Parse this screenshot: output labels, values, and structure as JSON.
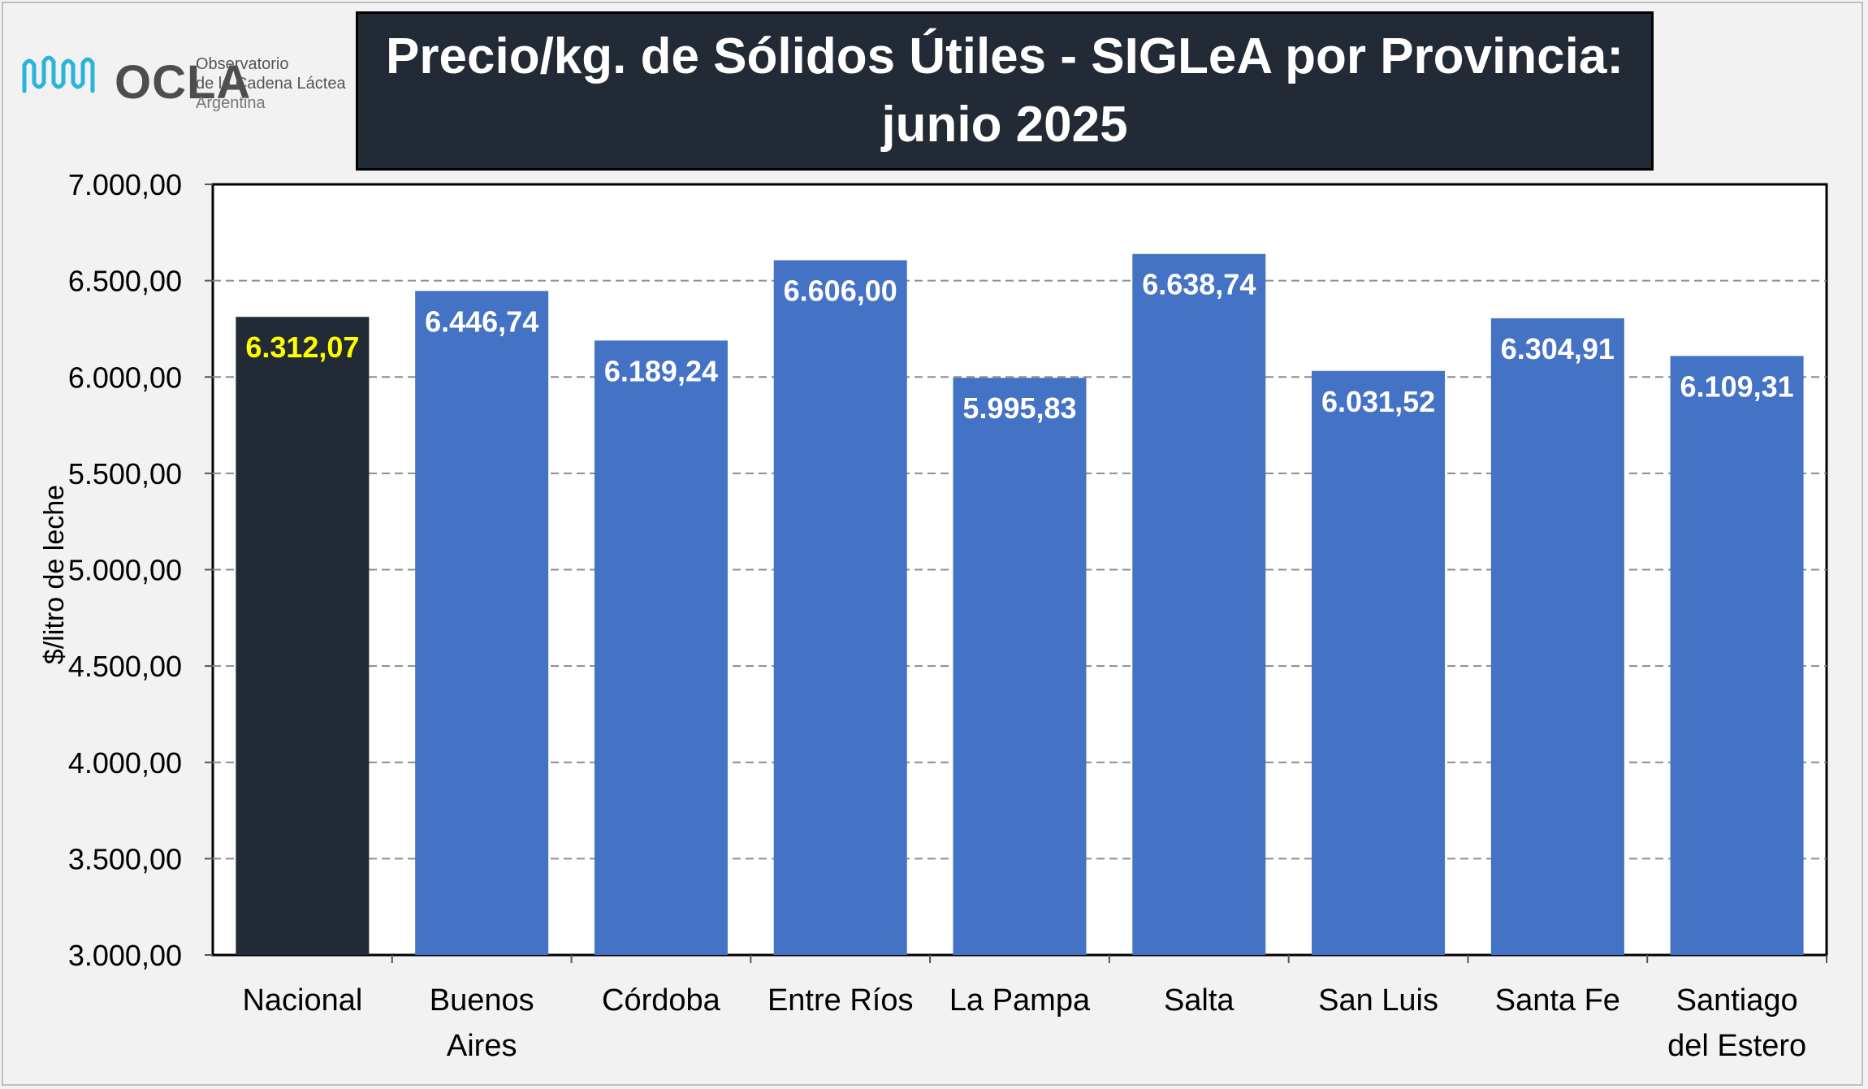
{
  "logo": {
    "name": "OCLA",
    "line1": "Observatorio",
    "line2": "de la Cadena Láctea",
    "line3": "Argentina"
  },
  "chart_data": {
    "type": "bar",
    "title": "Precio/kg. de Sólidos Útiles - SIGLeA por Provincia:\njunio 2025",
    "ylabel": "$/litro de leche",
    "xlabel": "",
    "ylim": [
      3000,
      7000
    ],
    "yticks": [
      "3.000,00",
      "3.500,00",
      "4.000,00",
      "4.500,00",
      "5.000,00",
      "5.500,00",
      "6.000,00",
      "6.500,00",
      "7.000,00"
    ],
    "ytick_values": [
      3000,
      3500,
      4000,
      4500,
      5000,
      5500,
      6000,
      6500,
      7000
    ],
    "grid": true,
    "categories": [
      "Nacional",
      "Buenos\nAires",
      "Córdoba",
      "Entre Ríos",
      "La Pampa",
      "Salta",
      "San Luis",
      "Santa Fe",
      "Santiago\ndel Estero"
    ],
    "values": [
      6312.07,
      6446.74,
      6189.24,
      6606.0,
      5995.83,
      6638.74,
      6031.52,
      6304.91,
      6109.31
    ],
    "value_labels": [
      "6.312,07",
      "6.446,74",
      "6.189,24",
      "6.606,00",
      "5.995,83",
      "6.638,74",
      "6.031,52",
      "6.304,91",
      "6.109,31"
    ],
    "colors": {
      "highlight_bar": "#222a35",
      "bar": "#4472c4",
      "highlight_label": "#ffff00",
      "label": "#ffffff",
      "grid": "#8c8c8c",
      "plot_bg": "#ffffff"
    }
  }
}
